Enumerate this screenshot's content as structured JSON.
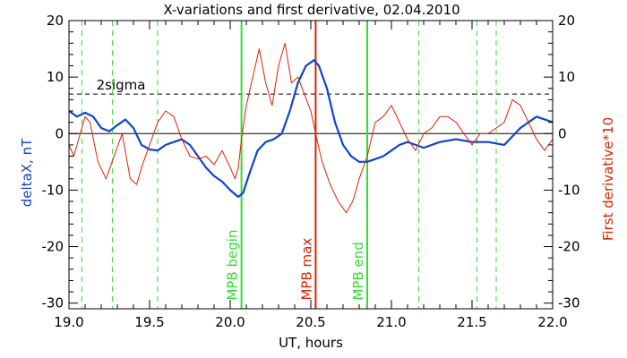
{
  "chart_data": {
    "type": "line",
    "title": "X-variations and first derivative, 02.04.2010",
    "xlabel": "UT, hours",
    "ylabel_left": "deltaX, nT",
    "ylabel_right": "First derivative*10",
    "xlim": [
      19.0,
      22.0
    ],
    "ylim": [
      -31,
      20
    ],
    "x_ticks": [
      "19.0",
      "19.5",
      "20.0",
      "20.5",
      "21.0",
      "21.5",
      "22.0"
    ],
    "y_ticks": [
      "20",
      "10",
      "0",
      "-10",
      "-20",
      "-30"
    ],
    "threshold": {
      "label": "2sigma",
      "value": 7
    },
    "markers": [
      {
        "label": "MPB begin",
        "x": 20.07,
        "color": "#33dd33"
      },
      {
        "label": "MPB max",
        "x": 20.53,
        "color": "#dd2200"
      },
      {
        "label": "MPB end",
        "x": 20.85,
        "color": "#33dd33"
      }
    ],
    "dashed_lines": [
      19.08,
      19.27,
      19.55,
      21.17,
      21.53,
      21.65
    ],
    "colors": {
      "deltaX": "#1144cc",
      "derivative": "#dd2200",
      "mpb": "#33dd33"
    },
    "series": [
      {
        "color": "#1144cc",
        "x": [
          19.0,
          19.05,
          19.1,
          19.15,
          19.2,
          19.25,
          19.3,
          19.35,
          19.4,
          19.45,
          19.5,
          19.55,
          19.6,
          19.65,
          19.7,
          19.75,
          19.8,
          19.85,
          19.9,
          19.95,
          20.0,
          20.05,
          20.08,
          20.12,
          20.17,
          20.22,
          20.27,
          20.32,
          20.37,
          20.42,
          20.47,
          20.52,
          20.55,
          20.6,
          20.65,
          20.7,
          20.75,
          20.8,
          20.85,
          20.9,
          20.95,
          21.0,
          21.05,
          21.1,
          21.15,
          21.2,
          21.3,
          21.4,
          21.5,
          21.6,
          21.7,
          21.8,
          21.9,
          22.0
        ],
        "y": [
          4,
          3,
          3.7,
          3,
          1,
          0.4,
          1.5,
          2.5,
          1,
          -2,
          -2.8,
          -3,
          -2,
          -1.5,
          -1,
          -2,
          -4,
          -6,
          -7.5,
          -8.5,
          -10,
          -11.2,
          -10.5,
          -7,
          -3,
          -1.5,
          -1,
          0,
          4,
          9,
          12,
          13,
          12,
          8,
          2,
          -2,
          -4,
          -5,
          -5,
          -4.5,
          -4,
          -3,
          -2,
          -1.5,
          -2,
          -2.5,
          -1.5,
          -1,
          -1.5,
          -1.5,
          -2,
          1,
          3,
          2
        ]
      },
      {
        "color": "#dd2200",
        "x": [
          19.0,
          19.03,
          19.07,
          19.1,
          19.13,
          19.18,
          19.23,
          19.28,
          19.33,
          19.38,
          19.42,
          19.45,
          19.5,
          19.55,
          19.6,
          19.65,
          19.7,
          19.75,
          19.8,
          19.85,
          19.9,
          19.95,
          20.0,
          20.03,
          20.05,
          20.07,
          20.1,
          20.14,
          20.18,
          20.22,
          20.26,
          20.3,
          20.34,
          20.38,
          20.42,
          20.46,
          20.5,
          20.53,
          20.57,
          20.62,
          20.67,
          20.72,
          20.76,
          20.8,
          20.85,
          20.9,
          20.95,
          21.0,
          21.05,
          21.1,
          21.15,
          21.2,
          21.25,
          21.3,
          21.35,
          21.4,
          21.45,
          21.5,
          21.55,
          21.6,
          21.65,
          21.7,
          21.75,
          21.8,
          21.85,
          21.9,
          21.95,
          22.0
        ],
        "y": [
          -2,
          -4,
          0,
          3,
          2,
          -5,
          -8,
          -4,
          0,
          -8,
          -9,
          -6,
          -2,
          2,
          4,
          3,
          -1,
          -4,
          -4.5,
          -4,
          -5.5,
          -3,
          -6,
          -8,
          -6,
          -1,
          5,
          10,
          15,
          9,
          5,
          12,
          16,
          9,
          10,
          7,
          4,
          0,
          -5,
          -9,
          -12,
          -14,
          -12,
          -8,
          -4,
          2,
          3,
          5,
          2,
          -1,
          -3,
          0,
          1,
          3,
          3,
          2,
          0,
          -2,
          0,
          0,
          1,
          2,
          6,
          5,
          2,
          -1,
          -3,
          -1
        ]
      }
    ]
  }
}
